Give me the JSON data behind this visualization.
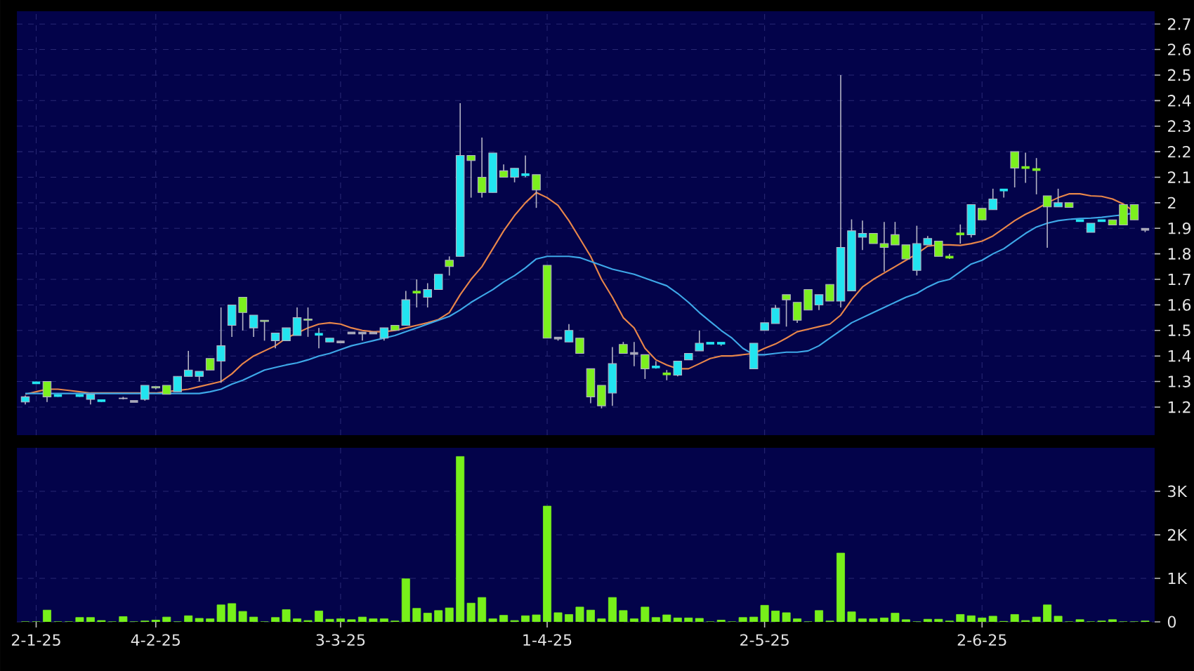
{
  "chart_data": [
    {
      "type": "candlestick",
      "categories": [
        null,
        null,
        null,
        null,
        null,
        null,
        null,
        null,
        null,
        null,
        null,
        null,
        null,
        null,
        null,
        null,
        null,
        null,
        null,
        null,
        null,
        null,
        null,
        null,
        null,
        null,
        null,
        null,
        null,
        null,
        null,
        null,
        null,
        null,
        null,
        null,
        null,
        null,
        null,
        null,
        null,
        null,
        null,
        null,
        null,
        null,
        null,
        null,
        null,
        null,
        null,
        null,
        null,
        null,
        null,
        null,
        null,
        null,
        null,
        null,
        null,
        null,
        null,
        null,
        null,
        null,
        null,
        null,
        null,
        null,
        null,
        null,
        null,
        null,
        null,
        null,
        null,
        null,
        null,
        null,
        null,
        null,
        null,
        null,
        null,
        null,
        null,
        null,
        null,
        null,
        null,
        null,
        null,
        null,
        null,
        null,
        null,
        null,
        null,
        null,
        null,
        null,
        null,
        null
      ],
      "ohlc": [
        [
          1.22,
          1.245,
          1.21,
          1.24
        ],
        [
          1.295,
          1.3,
          1.29,
          1.295
        ],
        [
          1.3,
          1.3,
          1.22,
          1.24
        ],
        [
          1.245,
          1.25,
          1.24,
          1.245
        ],
        null,
        [
          1.245,
          1.25,
          1.24,
          1.245
        ],
        [
          1.23,
          1.25,
          1.21,
          1.25
        ],
        [
          1.225,
          1.23,
          1.22,
          1.225
        ],
        null,
        [
          1.235,
          1.24,
          1.23,
          1.233
        ],
        [
          1.222,
          1.222,
          1.222,
          1.222
        ],
        [
          1.23,
          1.285,
          1.225,
          1.285
        ],
        [
          1.28,
          1.28,
          1.27,
          1.275
        ],
        [
          1.285,
          1.285,
          1.25,
          1.25
        ],
        [
          1.26,
          1.32,
          1.26,
          1.32
        ],
        [
          1.32,
          1.42,
          1.32,
          1.345
        ],
        [
          1.32,
          1.34,
          1.3,
          1.34
        ],
        [
          1.39,
          1.39,
          1.345,
          1.345
        ],
        [
          1.38,
          1.59,
          1.295,
          1.44
        ],
        [
          1.52,
          1.6,
          1.475,
          1.6
        ],
        [
          1.63,
          1.63,
          1.5,
          1.57
        ],
        [
          1.51,
          1.56,
          1.475,
          1.56
        ],
        [
          1.54,
          1.54,
          1.46,
          1.535
        ],
        [
          1.46,
          1.49,
          1.43,
          1.49
        ],
        [
          1.46,
          1.51,
          1.46,
          1.51
        ],
        [
          1.48,
          1.59,
          1.48,
          1.55
        ],
        [
          1.545,
          1.59,
          1.475,
          1.54
        ],
        [
          1.485,
          1.51,
          1.43,
          1.485
        ],
        [
          1.455,
          1.47,
          1.455,
          1.47
        ],
        [
          1.455,
          1.455,
          1.455,
          1.455
        ],
        [
          1.49,
          1.49,
          1.49,
          1.49
        ],
        [
          1.49,
          1.49,
          1.46,
          1.49
        ],
        [
          1.49,
          1.49,
          1.49,
          1.49
        ],
        [
          1.47,
          1.51,
          1.46,
          1.51
        ],
        [
          1.52,
          1.52,
          1.5,
          1.5
        ],
        [
          1.52,
          1.655,
          1.52,
          1.62
        ],
        [
          1.65,
          1.7,
          1.59,
          1.65
        ],
        [
          1.63,
          1.685,
          1.59,
          1.66
        ],
        [
          1.66,
          1.72,
          1.66,
          1.72
        ],
        [
          1.775,
          1.79,
          1.715,
          1.75
        ],
        [
          1.79,
          2.39,
          1.79,
          2.185
        ],
        [
          2.185,
          2.185,
          2.02,
          2.165
        ],
        [
          2.1,
          2.255,
          2.02,
          2.04
        ],
        [
          2.04,
          2.195,
          2.04,
          2.195
        ],
        [
          2.125,
          2.15,
          2.1,
          2.1
        ],
        [
          2.1,
          2.135,
          2.08,
          2.135
        ],
        [
          2.11,
          2.185,
          2.1,
          2.11
        ],
        [
          2.11,
          2.11,
          1.98,
          2.05
        ],
        [
          1.755,
          1.755,
          1.47,
          1.47
        ],
        [
          1.47,
          1.47,
          1.46,
          1.47
        ],
        [
          1.455,
          1.525,
          1.455,
          1.5
        ],
        [
          1.47,
          1.47,
          1.41,
          1.41
        ],
        [
          1.35,
          1.35,
          1.215,
          1.24
        ],
        [
          1.285,
          1.285,
          1.195,
          1.205
        ],
        [
          1.255,
          1.435,
          1.205,
          1.37
        ],
        [
          1.445,
          1.455,
          1.41,
          1.41
        ],
        [
          1.41,
          1.455,
          1.36,
          1.41
        ],
        [
          1.405,
          1.405,
          1.31,
          1.35
        ],
        [
          1.357,
          1.38,
          1.35,
          1.357
        ],
        [
          1.33,
          1.345,
          1.305,
          1.33
        ],
        [
          1.325,
          1.38,
          1.32,
          1.38
        ],
        [
          1.385,
          1.41,
          1.385,
          1.41
        ],
        [
          1.42,
          1.5,
          1.42,
          1.45
        ],
        [
          1.45,
          1.45,
          1.45,
          1.45
        ],
        [
          1.45,
          1.45,
          1.44,
          1.45
        ],
        null,
        null,
        [
          1.35,
          1.45,
          1.35,
          1.45
        ],
        [
          1.5,
          1.53,
          1.5,
          1.53
        ],
        [
          1.527,
          1.6,
          1.527,
          1.587
        ],
        [
          1.64,
          1.64,
          1.515,
          1.62
        ],
        [
          1.61,
          1.61,
          1.53,
          1.54
        ],
        [
          1.66,
          1.66,
          1.58,
          1.58
        ],
        [
          1.6,
          1.64,
          1.58,
          1.64
        ],
        [
          1.68,
          1.68,
          1.615,
          1.615
        ],
        [
          1.615,
          2.5,
          1.59,
          1.825
        ],
        [
          1.655,
          1.935,
          1.655,
          1.89
        ],
        [
          1.865,
          1.93,
          1.815,
          1.88
        ],
        [
          1.88,
          1.88,
          1.84,
          1.84
        ],
        [
          1.84,
          1.925,
          1.73,
          1.825
        ],
        [
          1.875,
          1.925,
          1.835,
          1.835
        ],
        [
          1.835,
          1.835,
          1.78,
          1.78
        ],
        [
          1.735,
          1.91,
          1.715,
          1.84
        ],
        [
          1.835,
          1.87,
          1.835,
          1.86
        ],
        [
          1.85,
          1.85,
          1.79,
          1.79
        ],
        [
          1.787,
          1.8,
          1.78,
          1.787
        ],
        [
          1.878,
          1.915,
          1.84,
          1.878
        ],
        [
          1.875,
          1.993,
          1.864,
          1.993
        ],
        [
          1.978,
          1.978,
          1.933,
          1.933
        ],
        [
          1.973,
          2.055,
          1.973,
          2.015
        ],
        [
          2.05,
          2.05,
          2.02,
          2.05
        ],
        [
          2.2,
          2.2,
          2.06,
          2.136
        ],
        [
          2.138,
          2.196,
          2.078,
          2.138
        ],
        [
          2.13,
          2.175,
          2.033,
          2.13
        ],
        [
          2.027,
          2.027,
          1.824,
          1.984
        ],
        [
          1.984,
          2.055,
          1.984,
          2.0
        ],
        [
          2.0,
          2.0,
          1.982,
          1.982
        ],
        [
          1.93,
          1.93,
          1.93,
          1.93
        ],
        [
          1.884,
          1.92,
          1.884,
          1.92
        ],
        [
          1.93,
          1.93,
          1.93,
          1.93
        ],
        [
          1.933,
          1.933,
          1.913,
          1.913
        ],
        [
          1.993,
          1.993,
          1.913,
          1.913
        ],
        [
          1.993,
          1.993,
          1.933,
          1.933
        ],
        [
          1.896,
          1.896,
          1.885,
          1.896
        ]
      ],
      "colors": [
        "#22e4f0",
        "#22e4f0",
        "#7cf01e",
        "#22e4f0",
        null,
        "#22e4f0",
        "#22e4f0",
        "#22e4f0",
        null,
        "#7cf01e",
        "#a8a8b8",
        "#22e4f0",
        "#7cf01e",
        "#7cf01e",
        "#22e4f0",
        "#22e4f0",
        "#22e4f0",
        "#7cf01e",
        "#22e4f0",
        "#22e4f0",
        "#7cf01e",
        "#22e4f0",
        "#7cf01e",
        "#22e4f0",
        "#22e4f0",
        "#22e4f0",
        "#7cf01e",
        "#22e4f0",
        "#22e4f0",
        "#a8a8b8",
        "#a8a8b8",
        "#a8a8b8",
        "#a8a8b8",
        "#22e4f0",
        "#7cf01e",
        "#22e4f0",
        "#7cf01e",
        "#22e4f0",
        "#22e4f0",
        "#7cf01e",
        "#22e4f0",
        "#7cf01e",
        "#7cf01e",
        "#22e4f0",
        "#7cf01e",
        "#22e4f0",
        "#22e4f0",
        "#7cf01e",
        "#7cf01e",
        "#a8a8b8",
        "#22e4f0",
        "#7cf01e",
        "#7cf01e",
        "#7cf01e",
        "#22e4f0",
        "#7cf01e",
        "#a8a8b8",
        "#7cf01e",
        "#22e4f0",
        "#7cf01e",
        "#22e4f0",
        "#22e4f0",
        "#22e4f0",
        "#22e4f0",
        "#22e4f0",
        null,
        null,
        "#22e4f0",
        "#22e4f0",
        "#22e4f0",
        "#7cf01e",
        "#7cf01e",
        "#7cf01e",
        "#22e4f0",
        "#7cf01e",
        "#22e4f0",
        "#22e4f0",
        "#22e4f0",
        "#7cf01e",
        "#7cf01e",
        "#7cf01e",
        "#7cf01e",
        "#22e4f0",
        "#22e4f0",
        "#7cf01e",
        "#7cf01e",
        "#7cf01e",
        "#22e4f0",
        "#7cf01e",
        "#22e4f0",
        "#22e4f0",
        "#7cf01e",
        "#7cf01e",
        "#7cf01e",
        "#7cf01e",
        "#22e4f0",
        "#7cf01e",
        "#22e4f0",
        "#22e4f0",
        "#22e4f0",
        "#7cf01e",
        "#7cf01e",
        "#7cf01e",
        "#a8a8b8"
      ],
      "series": [
        {
          "type": "line",
          "color": "#e8864a",
          "values": [
            1.25,
            1.26,
            1.27,
            1.27,
            1.265,
            1.26,
            1.255,
            1.255,
            1.255,
            1.255,
            1.255,
            1.255,
            1.255,
            1.26,
            1.265,
            1.27,
            1.28,
            1.29,
            1.3,
            1.33,
            1.37,
            1.4,
            1.42,
            1.44,
            1.47,
            1.49,
            1.51,
            1.525,
            1.53,
            1.525,
            1.51,
            1.5,
            1.495,
            1.495,
            1.5,
            1.51,
            1.52,
            1.53,
            1.543,
            1.57,
            1.64,
            1.7,
            1.75,
            1.82,
            1.89,
            1.95,
            2.0,
            2.04,
            2.02,
            1.99,
            1.93,
            1.86,
            1.79,
            1.7,
            1.63,
            1.55,
            1.51,
            1.43,
            1.385,
            1.365,
            1.35,
            1.35,
            1.37,
            1.39,
            1.4,
            1.4,
            1.405,
            1.41,
            1.43,
            1.447,
            1.47,
            1.495,
            1.505,
            1.515,
            1.525,
            1.56,
            1.62,
            1.67,
            1.7,
            1.725,
            1.75,
            1.775,
            1.8,
            1.83,
            1.835,
            1.835,
            1.833,
            1.84,
            1.85,
            1.87,
            1.9,
            1.93,
            1.955,
            1.975,
            2.0,
            2.02,
            2.035,
            2.035,
            2.027,
            2.025,
            2.015,
            1.995,
            1.965,
            null
          ]
        },
        {
          "type": "line",
          "color": "#3ea8e8",
          "values": [
            1.253,
            1.253,
            1.253,
            1.253,
            1.253,
            1.253,
            1.253,
            1.253,
            1.253,
            1.253,
            1.253,
            1.253,
            1.253,
            1.253,
            1.253,
            1.253,
            1.253,
            1.26,
            1.27,
            1.29,
            1.305,
            1.325,
            1.345,
            1.355,
            1.365,
            1.373,
            1.385,
            1.4,
            1.41,
            1.425,
            1.44,
            1.45,
            1.46,
            1.47,
            1.48,
            1.495,
            1.51,
            1.525,
            1.54,
            1.555,
            1.58,
            1.61,
            1.635,
            1.66,
            1.69,
            1.715,
            1.745,
            1.78,
            1.79,
            1.79,
            1.79,
            1.785,
            1.77,
            1.755,
            1.74,
            1.73,
            1.72,
            1.705,
            1.69,
            1.675,
            1.645,
            1.61,
            1.57,
            1.535,
            1.5,
            1.47,
            1.43,
            1.405,
            1.405,
            1.41,
            1.415,
            1.415,
            1.42,
            1.44,
            1.47,
            1.5,
            1.53,
            1.55,
            1.57,
            1.59,
            1.61,
            1.63,
            1.645,
            1.67,
            1.69,
            1.7,
            1.73,
            1.76,
            1.775,
            1.8,
            1.82,
            1.85,
            1.88,
            1.905,
            1.92,
            1.93,
            1.935,
            1.938,
            1.94,
            1.943,
            1.948,
            1.953,
            1.96,
            null
          ]
        }
      ],
      "ylim": [
        1.09,
        2.75
      ],
      "yticks": [
        1.2,
        1.3,
        1.4,
        1.5,
        1.6,
        1.7,
        1.8,
        1.9,
        2,
        2.1,
        2.2,
        2.3,
        2.4,
        2.5,
        2.6,
        2.7
      ],
      "grid": true,
      "tick_labels": "y"
    },
    {
      "type": "bar",
      "categories": [
        null,
        "2-1-25",
        null,
        null,
        null,
        null,
        null,
        null,
        null,
        null,
        null,
        null,
        "4-2-25",
        null,
        null,
        null,
        null,
        null,
        null,
        null,
        null,
        null,
        null,
        null,
        null,
        null,
        null,
        null,
        null,
        "3-3-25",
        null,
        null,
        null,
        null,
        null,
        null,
        null,
        null,
        null,
        null,
        null,
        null,
        null,
        null,
        null,
        null,
        null,
        null,
        "1-4-25",
        null,
        null,
        null,
        null,
        null,
        null,
        null,
        null,
        null,
        null,
        null,
        null,
        null,
        null,
        null,
        null,
        null,
        null,
        null,
        "2-5-25",
        null,
        null,
        null,
        null,
        null,
        null,
        null,
        null,
        null,
        null,
        null,
        null,
        null,
        null,
        null,
        null,
        null,
        null,
        null,
        "2-6-25",
        null,
        null,
        null,
        null,
        null,
        null,
        null,
        null,
        null,
        null,
        null,
        null,
        null,
        null,
        null
      ],
      "values": [
        0,
        0,
        270,
        0,
        0,
        100,
        100,
        30,
        0,
        120,
        0,
        20,
        40,
        110,
        0,
        140,
        80,
        70,
        390,
        420,
        240,
        110,
        0,
        100,
        280,
        70,
        30,
        250,
        60,
        70,
        50,
        110,
        70,
        70,
        20,
        990,
        310,
        200,
        260,
        320,
        3800,
        430,
        560,
        70,
        150,
        30,
        140,
        160,
        2660,
        210,
        170,
        340,
        270,
        70,
        560,
        260,
        70,
        340,
        100,
        160,
        90,
        90,
        80,
        0,
        40,
        0,
        100,
        110,
        380,
        250,
        210,
        70,
        0,
        260,
        20,
        1580,
        230,
        70,
        70,
        90,
        200,
        50,
        0,
        60,
        60,
        20,
        170,
        140,
        90,
        130,
        10,
        170,
        30,
        110,
        390,
        130,
        0,
        50,
        0,
        20,
        50,
        0,
        0,
        20
      ],
      "color": "#77f01a",
      "ylim": [
        0,
        4000
      ],
      "yticks": [
        0,
        {
          "value": 1000,
          "label": "1K"
        },
        {
          "value": 2000,
          "label": "2K"
        },
        {
          "value": 3000,
          "label": "3K"
        }
      ],
      "grid": true
    }
  ]
}
